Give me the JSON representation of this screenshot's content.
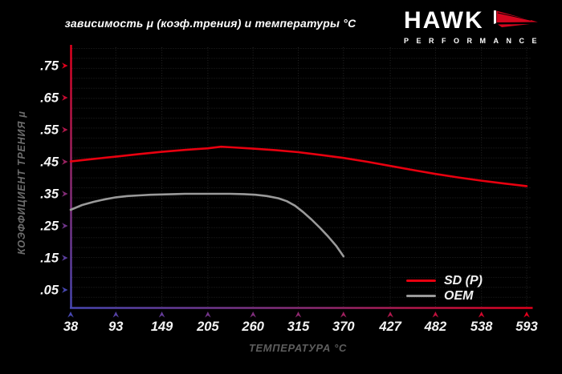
{
  "title": "зависимость μ (коэф.трения) и температуры °C",
  "logo": {
    "brand": "HAWK",
    "sub": "PERFORMANCE",
    "accent": "#d4061e"
  },
  "chart_data": {
    "type": "line",
    "title": "зависимость μ (коэф.трения) и температуры °C",
    "xlabel": "ТЕМПЕРАТУРА °C",
    "ylabel": "КОЭФФИЦИЕНТ ТРЕНИЯ μ",
    "xlim": [
      38,
      593
    ],
    "ylim": [
      0,
      0.8
    ],
    "grid": true,
    "legend_position": "lower right",
    "x_ticks": [
      38,
      93,
      149,
      205,
      260,
      315,
      370,
      427,
      482,
      538,
      593
    ],
    "y_ticks": [
      {
        "label": ".05",
        "value": 0.05
      },
      {
        "label": ".15",
        "value": 0.15
      },
      {
        "label": ".25",
        "value": 0.25
      },
      {
        "label": ".35",
        "value": 0.35
      },
      {
        "label": ".45",
        "value": 0.45
      },
      {
        "label": ".55",
        "value": 0.55
      },
      {
        "label": ".65",
        "value": 0.65
      },
      {
        "label": ".75",
        "value": 0.75
      }
    ],
    "axis_gradient": {
      "low": "#4747b2",
      "mid": "#8e286e",
      "high": "#e2001c"
    },
    "grid_color": "#262626",
    "tick_label_color": "#f4f4f4",
    "series": [
      {
        "name": "SD (P)",
        "color": "#e8000f",
        "points": [
          [
            38,
            0.451
          ],
          [
            66,
            0.459
          ],
          [
            93,
            0.466
          ],
          [
            121,
            0.474
          ],
          [
            149,
            0.481
          ],
          [
            177,
            0.487
          ],
          [
            205,
            0.492
          ],
          [
            221,
            0.497
          ],
          [
            235,
            0.495
          ],
          [
            260,
            0.491
          ],
          [
            288,
            0.486
          ],
          [
            315,
            0.48
          ],
          [
            343,
            0.471
          ],
          [
            370,
            0.462
          ],
          [
            399,
            0.45
          ],
          [
            427,
            0.437
          ],
          [
            455,
            0.424
          ],
          [
            482,
            0.412
          ],
          [
            510,
            0.401
          ],
          [
            538,
            0.391
          ],
          [
            566,
            0.382
          ],
          [
            593,
            0.374
          ]
        ]
      },
      {
        "name": "OEM",
        "color": "#9a9a9a",
        "points": [
          [
            38,
            0.3
          ],
          [
            52,
            0.315
          ],
          [
            66,
            0.325
          ],
          [
            80,
            0.333
          ],
          [
            93,
            0.339
          ],
          [
            107,
            0.343
          ],
          [
            121,
            0.345
          ],
          [
            135,
            0.347
          ],
          [
            149,
            0.348
          ],
          [
            163,
            0.349
          ],
          [
            177,
            0.35
          ],
          [
            205,
            0.35
          ],
          [
            232,
            0.35
          ],
          [
            249,
            0.349
          ],
          [
            263,
            0.347
          ],
          [
            277,
            0.343
          ],
          [
            291,
            0.336
          ],
          [
            301,
            0.327
          ],
          [
            311,
            0.313
          ],
          [
            321,
            0.293
          ],
          [
            331,
            0.27
          ],
          [
            341,
            0.245
          ],
          [
            351,
            0.218
          ],
          [
            361,
            0.188
          ],
          [
            370,
            0.155
          ]
        ]
      }
    ]
  }
}
